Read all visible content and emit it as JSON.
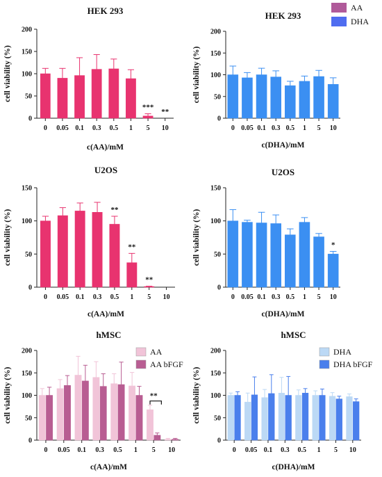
{
  "chart_data": [
    {
      "type": "bar",
      "title": "HEK 293",
      "xlabel": "c(AA)/mM",
      "ylabel": "cell viability (%)",
      "ylim": [
        0,
        200
      ],
      "yticks": [
        "0",
        "50",
        "100",
        "150",
        "200"
      ],
      "categories": [
        "0",
        "0.05",
        "0.1",
        "0.3",
        "0.5",
        "1",
        "5",
        "10"
      ],
      "series": [
        {
          "name": "",
          "color": "#e8336f",
          "values": [
            100,
            90,
            96,
            110,
            111,
            89,
            5,
            0
          ],
          "errors": [
            12,
            22,
            40,
            33,
            22,
            20,
            5,
            0
          ]
        }
      ],
      "annotations": [
        {
          "category": "5",
          "text": "***"
        },
        {
          "category": "10",
          "text": "**"
        }
      ]
    },
    {
      "type": "bar",
      "title": "HEK 293",
      "xlabel": "c(DHA)/mM",
      "ylabel": "cell viability (%)",
      "ylim": [
        0,
        200
      ],
      "yticks": [
        "0",
        "50",
        "100",
        "150",
        "200"
      ],
      "categories": [
        "0",
        "0.05",
        "0.1",
        "0.3",
        "0.5",
        "1",
        "5",
        "10"
      ],
      "series": [
        {
          "name": "",
          "color": "#3b8ff2",
          "values": [
            100,
            93,
            100,
            95,
            75,
            85,
            96,
            78
          ],
          "errors": [
            20,
            12,
            15,
            14,
            10,
            12,
            14,
            15
          ]
        }
      ],
      "legend": {
        "position": "top-right",
        "items": [
          {
            "label": "AA",
            "color": "#b05a9a"
          },
          {
            "label": "DHA",
            "color": "#4f6df0"
          }
        ]
      }
    },
    {
      "type": "bar",
      "title": "U2OS",
      "xlabel": "c(AA)/mM",
      "ylabel": "cell viability (%)",
      "ylim": [
        0,
        150
      ],
      "yticks": [
        "0",
        "50",
        "100",
        "150"
      ],
      "categories": [
        "0",
        "0.05",
        "0.1",
        "0.3",
        "0.5",
        "1",
        "5",
        "10"
      ],
      "series": [
        {
          "name": "",
          "color": "#e8336f",
          "values": [
            100,
            108,
            115,
            113,
            95,
            37,
            1,
            0
          ],
          "errors": [
            7,
            12,
            12,
            15,
            12,
            14,
            0.5,
            0
          ]
        }
      ],
      "annotations": [
        {
          "category": "0.5",
          "text": "**"
        },
        {
          "category": "1",
          "text": "**"
        },
        {
          "category": "5",
          "text": "**"
        }
      ]
    },
    {
      "type": "bar",
      "title": "U2OS",
      "xlabel": "c(DHA)/mM",
      "ylabel": "cell viability (%)",
      "ylim": [
        0,
        150
      ],
      "yticks": [
        "0",
        "50",
        "100",
        "150"
      ],
      "categories": [
        "0",
        "0.05",
        "0.1",
        "0.3",
        "0.5",
        "1",
        "5",
        "10"
      ],
      "series": [
        {
          "name": "",
          "color": "#3b8ff2",
          "values": [
            100,
            98,
            97,
            96,
            79,
            98,
            76,
            50
          ],
          "errors": [
            17,
            3,
            16,
            13,
            9,
            7,
            5,
            4
          ]
        }
      ],
      "annotations": [
        {
          "category": "10",
          "text": "*"
        }
      ]
    },
    {
      "type": "bar",
      "title": "hMSC",
      "xlabel": "c(AA)/mM",
      "ylabel": "cell viability (%)",
      "ylim": [
        0,
        200
      ],
      "yticks": [
        "0",
        "50",
        "100",
        "150",
        "200"
      ],
      "categories": [
        "0",
        "0.05",
        "0.1",
        "0.3",
        "0.5",
        "1",
        "5",
        "10"
      ],
      "series": [
        {
          "name": "AA",
          "color": "#f1c4d8",
          "values": [
            100,
            115,
            145,
            140,
            126,
            121,
            68,
            2
          ],
          "errors": [
            15,
            20,
            42,
            35,
            22,
            30,
            10,
            2
          ]
        },
        {
          "name": "AA  bFGF",
          "color": "#b85d92",
          "values": [
            100,
            122,
            132,
            120,
            124,
            100,
            11,
            2
          ],
          "errors": [
            18,
            22,
            35,
            28,
            50,
            20,
            5,
            2
          ]
        }
      ],
      "annotations": [
        {
          "category": "5",
          "text": "**"
        }
      ],
      "legend": {
        "position": "top-right"
      }
    },
    {
      "type": "bar",
      "title": "hMSC",
      "xlabel": "c(DHA)/mM",
      "ylabel": "cell viability (%)",
      "ylim": [
        0,
        200
      ],
      "yticks": [
        "0",
        "50",
        "100",
        "150",
        "200"
      ],
      "categories": [
        "0",
        "0.05",
        "0.1",
        "0.3",
        "0.5",
        "1",
        "5",
        "10"
      ],
      "series": [
        {
          "name": "DHA",
          "color": "#bcd9f5",
          "values": [
            100,
            85,
            95,
            105,
            100,
            100,
            98,
            97
          ],
          "errors": [
            5,
            20,
            18,
            35,
            12,
            10,
            8,
            6
          ]
        },
        {
          "name": "DHA  bFGF",
          "color": "#4a7fec",
          "values": [
            100,
            101,
            104,
            100,
            105,
            100,
            92,
            86
          ],
          "errors": [
            8,
            40,
            42,
            42,
            10,
            14,
            6,
            6
          ]
        }
      ],
      "legend": {
        "position": "top-right"
      }
    }
  ]
}
